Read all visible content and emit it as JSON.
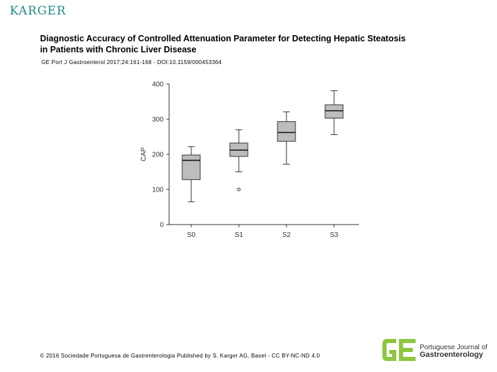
{
  "header": {
    "publisher": "KARGER",
    "title_line1": "Diagnostic Accuracy of Controlled Attenuation Parameter for Detecting Hepatic Steatosis",
    "title_line2": "in Patients with Chronic Liver Disease",
    "citation": "GE Port J Gastroenterol 2017;24:161-168 - DOI:10.1159/000453364"
  },
  "footer": {
    "copyright": "© 2016 Sociedade Portuguesa de Gastrenterologia Published by S. Karger AG, Basel - CC BY-NC-ND 4.0",
    "journal_line1": "Portuguese Journal of",
    "journal_line2": "Gastroenterology"
  },
  "colors": {
    "box_fill": "#bdbdbd",
    "stroke": "#333333",
    "brand_green": "#8dc63f",
    "brand_teal": "#1f8a83"
  },
  "chart_data": {
    "type": "boxplot",
    "categories": [
      "S0",
      "S1",
      "S2",
      "S3"
    ],
    "ylabel": "CAP",
    "xlabel": "",
    "ylim": [
      0,
      400
    ],
    "yticks": [
      0,
      100,
      200,
      300,
      400
    ],
    "grid": false,
    "boxes": [
      {
        "category": "S0",
        "min": 65,
        "q1": 128,
        "median": 183,
        "q3": 198,
        "max": 222,
        "outliers": []
      },
      {
        "category": "S1",
        "min": 150,
        "q1": 194,
        "median": 212,
        "q3": 232,
        "max": 270,
        "outliers": [
          100
        ]
      },
      {
        "category": "S2",
        "min": 172,
        "q1": 237,
        "median": 262,
        "q3": 293,
        "max": 321,
        "outliers": []
      },
      {
        "category": "S3",
        "min": 256,
        "q1": 303,
        "median": 324,
        "q3": 341,
        "max": 381,
        "outliers": []
      }
    ]
  }
}
